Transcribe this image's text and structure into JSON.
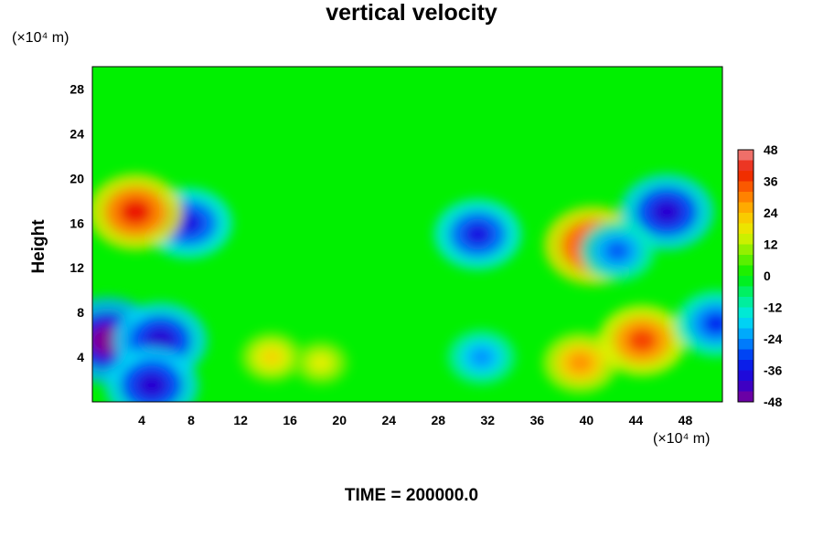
{
  "chart_data": {
    "type": "heatmap",
    "title": "vertical velocity",
    "ylabel": "Height",
    "y_unit": "(×10⁴ m)",
    "x_unit": "(×10⁴ m)",
    "footer": "TIME = 200000.0",
    "xlim": [
      0,
      51
    ],
    "ylim": [
      0,
      30
    ],
    "x_ticks": [
      "4",
      "8",
      "12",
      "16",
      "20",
      "24",
      "28",
      "32",
      "36",
      "40",
      "44",
      "48"
    ],
    "y_ticks": [
      "4",
      "8",
      "12",
      "16",
      "20",
      "24",
      "28"
    ],
    "colorbar": {
      "range": [
        -48,
        48
      ],
      "step": 4,
      "tick_labels": [
        "48",
        "36",
        "24",
        "12",
        "0",
        "-12",
        "-24",
        "-36",
        "-48"
      ]
    },
    "features": [
      {
        "x": 1.2,
        "y": 5.5,
        "value": -48
      },
      {
        "x": 5.5,
        "y": 5.5,
        "value": -40
      },
      {
        "x": 4.8,
        "y": 1.5,
        "value": -40
      },
      {
        "x": 7.8,
        "y": 16,
        "value": -36
      },
      {
        "x": 3.5,
        "y": 17,
        "value": 40
      },
      {
        "x": 14.5,
        "y": 4,
        "value": 20
      },
      {
        "x": 18.5,
        "y": 3.5,
        "value": 16
      },
      {
        "x": 31.5,
        "y": 4,
        "value": -24
      },
      {
        "x": 39.5,
        "y": 3.5,
        "value": 28
      },
      {
        "x": 44.5,
        "y": 5.5,
        "value": 36
      },
      {
        "x": 40.5,
        "y": 14,
        "value": 42
      },
      {
        "x": 31.2,
        "y": 15,
        "value": -36
      },
      {
        "x": 46.5,
        "y": 17,
        "value": -40
      },
      {
        "x": 50.5,
        "y": 7,
        "value": -32
      },
      {
        "x": 42.5,
        "y": 13.5,
        "value": -28
      }
    ]
  }
}
